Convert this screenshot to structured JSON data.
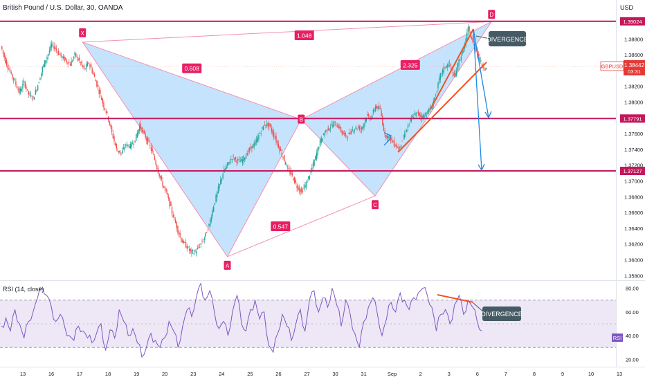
{
  "header": {
    "title": "British Pound / U.S. Dollar, 30, OANDA",
    "currency": "USD"
  },
  "price_axis": {
    "ticks": [
      "1.39200",
      "1.38800",
      "1.38600",
      "1.38400",
      "1.38200",
      "1.38000",
      "1.37800",
      "1.37600",
      "1.37400",
      "1.37200",
      "1.37000",
      "1.36800",
      "1.36600",
      "1.36400",
      "1.36200",
      "1.36000",
      "1.35800"
    ],
    "ticks_labeled": [
      "1.38800",
      "1.38600",
      "1.38200",
      "1.38000",
      "1.37600",
      "1.37400",
      "1.37200",
      "1.37000",
      "1.36800",
      "1.36600",
      "1.36400",
      "1.36200",
      "1.36000",
      "1.35800"
    ]
  },
  "levels": [
    {
      "label": "1.39024",
      "value": 1.39024,
      "color": "#c2185b"
    },
    {
      "label": "1.37791",
      "value": 1.37791,
      "color": "#c2185b"
    },
    {
      "label": "1.37127",
      "value": 1.37127,
      "color": "#c2185b"
    }
  ],
  "current": {
    "symbol": "GBPUSD",
    "price": "1.38442",
    "countdown": "03:31",
    "color": "#e53935"
  },
  "pattern": {
    "points": [
      {
        "label": "X",
        "date_index": 2.1,
        "price": 1.3876
      },
      {
        "label": "A",
        "date_index": 7.2,
        "price": 1.3604
      },
      {
        "label": "B",
        "date_index": 9.8,
        "price": 1.3778
      },
      {
        "label": "C",
        "date_index": 12.4,
        "price": 1.3681
      },
      {
        "label": "D",
        "date_index": 16.5,
        "price": 1.3902
      }
    ],
    "ratios": [
      {
        "label": "0.608",
        "color": "#e91e63"
      },
      {
        "label": "1.048",
        "color": "#e91e63"
      },
      {
        "label": "0.547",
        "color": "#e91e63"
      },
      {
        "label": "2.325",
        "color": "#e91e63"
      }
    ],
    "fill": "#bbdefb",
    "edge": "#f48fb1"
  },
  "annotations": {
    "divergence_price": "DIVERGENCE",
    "divergence_rsi": "DIVERGENCE"
  },
  "rsi": {
    "title": "RSI (14, close)",
    "badge": "RSI",
    "ticks": [
      "80.00",
      "60.00",
      "40.00",
      "20.00"
    ],
    "upper": 70,
    "lower": 30,
    "line_color": "#7e57c2",
    "band_color": "#ede7f6"
  },
  "time_axis": {
    "labels": [
      "13",
      "16",
      "17",
      "18",
      "19",
      "20",
      "23",
      "24",
      "25",
      "26",
      "27",
      "30",
      "31",
      "Sep",
      "2",
      "3",
      "6",
      "7",
      "8",
      "9",
      "10",
      "13"
    ]
  },
  "chart_data": {
    "type": "candlestick",
    "title": "British Pound / U.S. Dollar, 30, OANDA",
    "ylim": [
      1.3575,
      1.3925
    ],
    "close_path": [
      1.3871,
      1.3852,
      1.3838,
      1.3826,
      1.3812,
      1.3825,
      1.381,
      1.3805,
      1.3822,
      1.3843,
      1.3858,
      1.3873,
      1.3866,
      1.3858,
      1.3853,
      1.3848,
      1.386,
      1.3852,
      1.3841,
      1.385,
      1.3835,
      1.3818,
      1.3799,
      1.3784,
      1.3761,
      1.374,
      1.3735,
      1.3746,
      1.3744,
      1.3752,
      1.377,
      1.3758,
      1.3747,
      1.3732,
      1.3712,
      1.3695,
      1.3681,
      1.366,
      1.3642,
      1.3625,
      1.3618,
      1.361,
      1.361,
      1.3618,
      1.3628,
      1.3644,
      1.3669,
      1.369,
      1.371,
      1.3721,
      1.373,
      1.3726,
      1.3725,
      1.3733,
      1.3742,
      1.3748,
      1.3761,
      1.3772,
      1.377,
      1.3758,
      1.3744,
      1.373,
      1.3715,
      1.3706,
      1.3693,
      1.3686,
      1.3697,
      1.3712,
      1.373,
      1.375,
      1.3762,
      1.3768,
      1.3773,
      1.3769,
      1.3759,
      1.3757,
      1.3765,
      1.3768,
      1.3766,
      1.3782,
      1.378,
      1.3795,
      1.379,
      1.3758,
      1.3755,
      1.3747,
      1.3741,
      1.3755,
      1.377,
      1.3782,
      1.3786,
      1.3781,
      1.3786,
      1.3793,
      1.381,
      1.3834,
      1.3845,
      1.3848,
      1.3831,
      1.3852,
      1.3866,
      1.3893,
      1.3875,
      1.3862,
      1.3846,
      1.3842
    ],
    "rsi_ylim": [
      15,
      85
    ],
    "rsi_path": [
      48,
      55,
      44,
      62,
      50,
      38,
      52,
      60,
      72,
      80,
      74,
      65,
      52,
      58,
      47,
      40,
      36,
      48,
      44,
      38,
      34,
      42,
      50,
      28,
      45,
      38,
      62,
      52,
      40,
      46,
      34,
      22,
      30,
      42,
      36,
      30,
      38,
      52,
      44,
      30,
      48,
      62,
      56,
      72,
      84,
      70,
      78,
      60,
      46,
      52,
      40,
      60,
      74,
      50,
      44,
      62,
      70,
      54,
      60,
      32,
      26,
      42,
      58,
      48,
      36,
      50,
      62,
      44,
      70,
      78,
      60,
      72,
      64,
      80,
      66,
      48,
      70,
      58,
      42,
      30,
      52,
      64,
      72,
      58,
      40,
      54,
      68,
      60,
      76,
      70,
      62,
      72,
      76,
      80,
      74,
      64,
      44,
      58,
      62,
      50,
      66,
      74,
      58,
      70,
      64,
      52,
      44
    ]
  }
}
